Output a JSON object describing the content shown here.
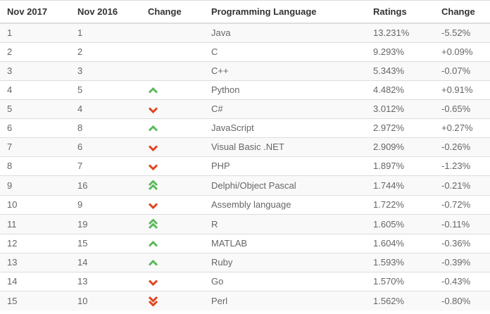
{
  "table": {
    "columns": [
      {
        "key": "rank_now",
        "label": "Nov 2017"
      },
      {
        "key": "rank_prev",
        "label": "Nov 2016"
      },
      {
        "key": "change_icon",
        "label": "Change"
      },
      {
        "key": "language",
        "label": "Programming Language"
      },
      {
        "key": "rating",
        "label": "Ratings"
      },
      {
        "key": "change_pct",
        "label": "Change"
      }
    ],
    "icon_colors": {
      "up": "#5cb85c",
      "down": "#e2431e"
    },
    "rows": [
      {
        "rank_now": "1",
        "rank_prev": "1",
        "change_icon": "none",
        "language": "Java",
        "rating": "13.231%",
        "change_pct": "-5.52%"
      },
      {
        "rank_now": "2",
        "rank_prev": "2",
        "change_icon": "none",
        "language": "C",
        "rating": "9.293%",
        "change_pct": "+0.09%"
      },
      {
        "rank_now": "3",
        "rank_prev": "3",
        "change_icon": "none",
        "language": "C++",
        "rating": "5.343%",
        "change_pct": "-0.07%"
      },
      {
        "rank_now": "4",
        "rank_prev": "5",
        "change_icon": "up",
        "language": "Python",
        "rating": "4.482%",
        "change_pct": "+0.91%"
      },
      {
        "rank_now": "5",
        "rank_prev": "4",
        "change_icon": "down",
        "language": "C#",
        "rating": "3.012%",
        "change_pct": "-0.65%"
      },
      {
        "rank_now": "6",
        "rank_prev": "8",
        "change_icon": "up",
        "language": "JavaScript",
        "rating": "2.972%",
        "change_pct": "+0.27%"
      },
      {
        "rank_now": "7",
        "rank_prev": "6",
        "change_icon": "down",
        "language": "Visual Basic .NET",
        "rating": "2.909%",
        "change_pct": "-0.26%"
      },
      {
        "rank_now": "8",
        "rank_prev": "7",
        "change_icon": "down",
        "language": "PHP",
        "rating": "1.897%",
        "change_pct": "-1.23%"
      },
      {
        "rank_now": "9",
        "rank_prev": "16",
        "change_icon": "up-double",
        "language": "Delphi/Object Pascal",
        "rating": "1.744%",
        "change_pct": "-0.21%"
      },
      {
        "rank_now": "10",
        "rank_prev": "9",
        "change_icon": "down",
        "language": "Assembly language",
        "rating": "1.722%",
        "change_pct": "-0.72%"
      },
      {
        "rank_now": "11",
        "rank_prev": "19",
        "change_icon": "up-double",
        "language": "R",
        "rating": "1.605%",
        "change_pct": "-0.11%"
      },
      {
        "rank_now": "12",
        "rank_prev": "15",
        "change_icon": "up",
        "language": "MATLAB",
        "rating": "1.604%",
        "change_pct": "-0.36%"
      },
      {
        "rank_now": "13",
        "rank_prev": "14",
        "change_icon": "up",
        "language": "Ruby",
        "rating": "1.593%",
        "change_pct": "-0.39%"
      },
      {
        "rank_now": "14",
        "rank_prev": "13",
        "change_icon": "down",
        "language": "Go",
        "rating": "1.570%",
        "change_pct": "-0.43%"
      },
      {
        "rank_now": "15",
        "rank_prev": "10",
        "change_icon": "down-double",
        "language": "Perl",
        "rating": "1.562%",
        "change_pct": "-0.80%"
      }
    ]
  }
}
